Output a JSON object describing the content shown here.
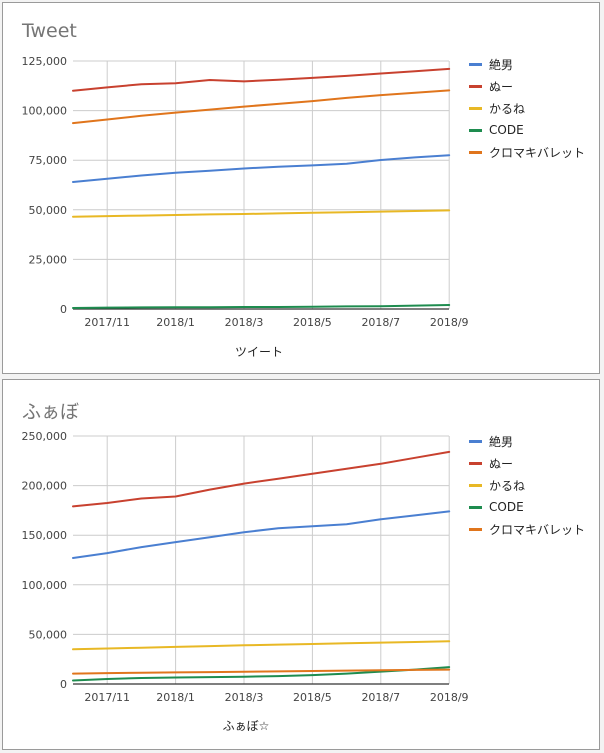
{
  "chart_data": [
    {
      "type": "line",
      "title": "Tweet",
      "xlabel": "ツイート",
      "ylabel": "",
      "ylim": [
        0,
        125000
      ],
      "yticks": [
        "125,000",
        "100,000",
        "75,000",
        "50,000",
        "25,000",
        "0"
      ],
      "xticks": [
        "2017/11",
        "2018/1",
        "2018/3",
        "2018/5",
        "2018/7",
        "2018/9"
      ],
      "x": [
        "2017/10",
        "2017/11",
        "2017/12",
        "2018/1",
        "2018/2",
        "2018/3",
        "2018/4",
        "2018/5",
        "2018/6",
        "2018/7",
        "2018/8",
        "2018/9"
      ],
      "grid": true,
      "legend_position": "right",
      "series": [
        {
          "name": "絶男",
          "color": "#4a7fd1",
          "values": [
            64000,
            65700,
            67300,
            68700,
            69700,
            70800,
            71700,
            72400,
            73200,
            75100,
            76400,
            77500
          ]
        },
        {
          "name": "ぬー",
          "color": "#c8412f",
          "values": [
            110000,
            111700,
            113300,
            113800,
            115400,
            114700,
            115500,
            116500,
            117500,
            118700,
            119800,
            121000
          ]
        },
        {
          "name": "かるね",
          "color": "#e8b825",
          "values": [
            46500,
            46800,
            47100,
            47400,
            47700,
            47900,
            48200,
            48500,
            48800,
            49100,
            49400,
            49700
          ]
        },
        {
          "name": "CODE",
          "color": "#1e8c4f",
          "values": [
            500,
            700,
            800,
            900,
            900,
            1000,
            1000,
            1100,
            1300,
            1400,
            1700,
            2000
          ]
        },
        {
          "name": "クロマキバレット",
          "color": "#e0751c",
          "values": [
            93700,
            95500,
            97400,
            99000,
            100500,
            102000,
            103400,
            104800,
            106400,
            107800,
            109000,
            110200
          ]
        }
      ]
    },
    {
      "type": "line",
      "title": "ふぁぼ",
      "xlabel": "ふぁぼ☆",
      "ylabel": "",
      "ylim": [
        0,
        250000
      ],
      "yticks": [
        "250,000",
        "200,000",
        "150,000",
        "100,000",
        "50,000",
        "0"
      ],
      "xticks": [
        "2017/11",
        "2018/1",
        "2018/3",
        "2018/5",
        "2018/7",
        "2018/9"
      ],
      "x": [
        "2017/10",
        "2017/11",
        "2017/12",
        "2018/1",
        "2018/2",
        "2018/3",
        "2018/4",
        "2018/5",
        "2018/6",
        "2018/7",
        "2018/8",
        "2018/9"
      ],
      "grid": true,
      "legend_position": "right",
      "series": [
        {
          "name": "絶男",
          "color": "#4a7fd1",
          "values": [
            127000,
            132000,
            138000,
            143000,
            148000,
            153000,
            157000,
            159000,
            161000,
            166000,
            170000,
            174000
          ]
        },
        {
          "name": "ぬー",
          "color": "#c8412f",
          "values": [
            179000,
            182500,
            187000,
            189000,
            196000,
            202000,
            207000,
            212000,
            217000,
            222000,
            228000,
            234000
          ]
        },
        {
          "name": "かるね",
          "color": "#e8b825",
          "values": [
            35000,
            35800,
            36600,
            37400,
            38200,
            39000,
            39700,
            40300,
            41000,
            41700,
            42300,
            43000
          ]
        },
        {
          "name": "CODE",
          "color": "#1e8c4f",
          "values": [
            3500,
            5000,
            6000,
            6600,
            7000,
            7400,
            8000,
            9000,
            10500,
            12500,
            14500,
            17000
          ]
        },
        {
          "name": "クロマキバレット",
          "color": "#e0751c",
          "values": [
            10500,
            11000,
            11400,
            11700,
            12000,
            12300,
            12700,
            13100,
            13500,
            13900,
            14200,
            14500
          ]
        }
      ]
    }
  ]
}
